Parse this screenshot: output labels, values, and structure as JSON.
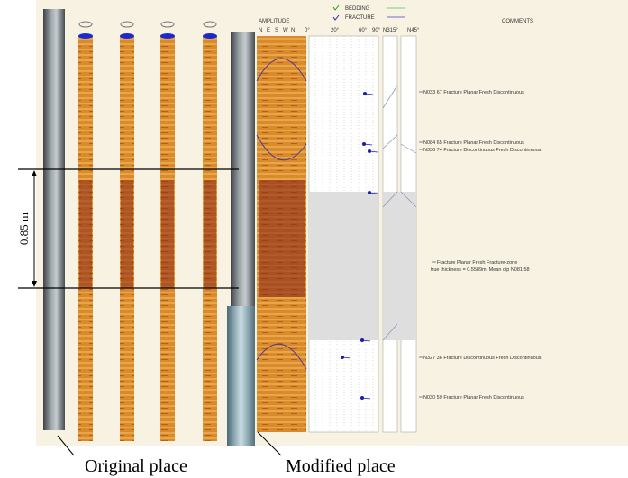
{
  "legend": {
    "bedding": "BEDDING",
    "fracture": "FRACTURE"
  },
  "header": {
    "amplitude": "AMPLITUDE",
    "azimuths": [
      "N",
      "E",
      "S",
      "W",
      "N"
    ],
    "dips": [
      "0°",
      "20°",
      "60°",
      "90°"
    ],
    "columns": [
      "N315°",
      "N45°"
    ],
    "comments": "COMMENTS"
  },
  "comments": [
    "N033 67 Fracture Planar Fresh Discontinuous",
    "N084 65 Fracture Planar Fresh Discontinuous",
    "N336 74 Fracture Discontinuous Fresh Discontinuous",
    "Fracture Planar Fresh Fracture-zone",
    "true thickness = 0.5589m, Mean dip N081 58",
    "N327 36 Fracture Discontinuous Fresh Discontinuous",
    "N030 59 Fracture Planar Fresh Discontinuous"
  ],
  "annotations": {
    "scale": "0.85 m",
    "original": "Original place",
    "modified": "Modified place"
  }
}
